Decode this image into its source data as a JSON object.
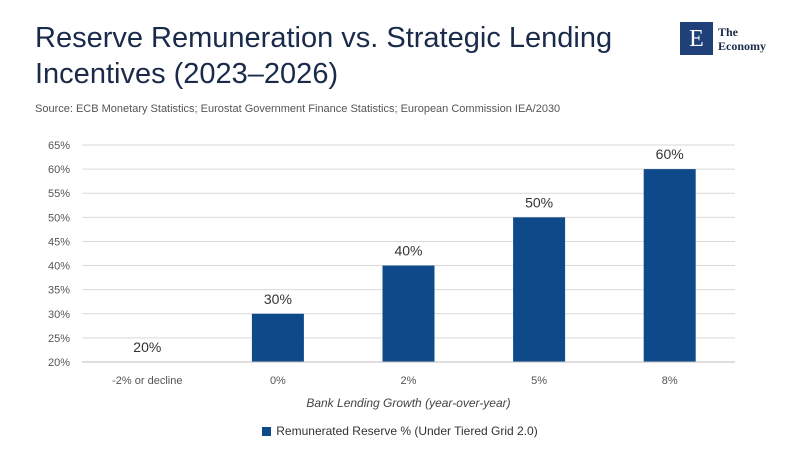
{
  "header": {
    "title": "Reserve Remuneration vs. Strategic Lending Incentives (2023–2026)",
    "source": "Source:   ECB Monetary Statistics; Eurostat Government Finance Statistics; European Commission IEA/2030"
  },
  "logo": {
    "glyph": "E",
    "line1": "The",
    "line2": "Economy"
  },
  "chart_data": {
    "type": "bar",
    "categories": [
      "-2% or decline",
      "0%",
      "2%",
      "5%",
      "8%"
    ],
    "series": [
      {
        "name": "Remunerated Reserve % (Under Tiered Grid 2.0)",
        "values": [
          20,
          30,
          40,
          50,
          60
        ],
        "labels": [
          "20%",
          "30%",
          "40%",
          "50%",
          "60%"
        ]
      }
    ],
    "xlabel": "Bank Lending Growth (year-over-year)",
    "ylabel": "",
    "ylim": [
      20,
      65
    ],
    "yticks": [
      20,
      25,
      30,
      35,
      40,
      45,
      50,
      55,
      60,
      65
    ],
    "ytick_format": "{v}%",
    "grid": true,
    "legend_position": "bottom",
    "bar_color": "#0e4a8a"
  }
}
